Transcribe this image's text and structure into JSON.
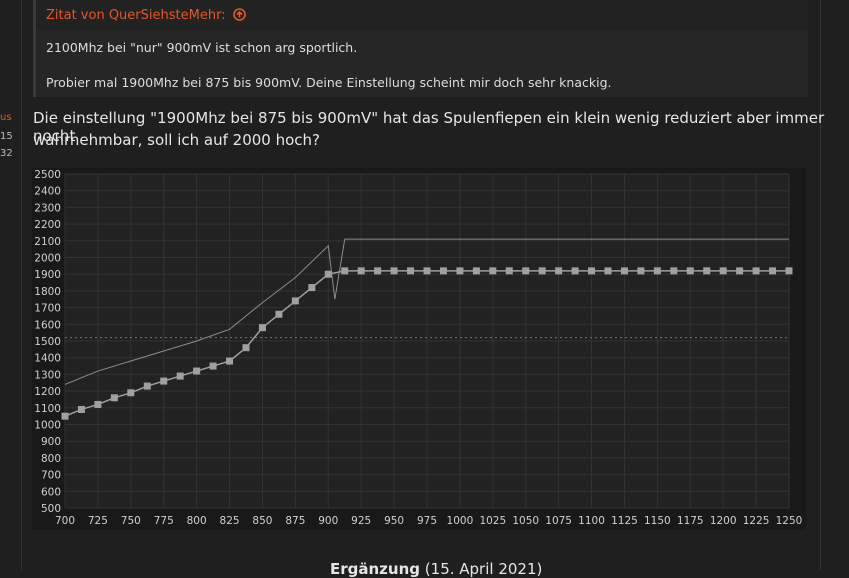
{
  "sidebar": [
    "us",
    "15",
    "32"
  ],
  "quote": {
    "author": "Zitat von QuerSiehsteMehr:",
    "lines": [
      "2100Mhz bei \"nur\" 900mV ist schon arg sportlich.",
      "Probier mal 1900Mhz bei 875 bis 900mV. Deine Einstellung scheint mir doch sehr knackig."
    ]
  },
  "post": {
    "lines": [
      "Die einstellung \"1900Mhz bei 875 bis 900mV\" hat das Spulenfiepen ein klein wenig reduziert aber immer nocht",
      "wahrnehmbar, soll ich auf 2000 hoch?"
    ]
  },
  "chart_data": {
    "type": "line",
    "xlim": [
      700,
      1250
    ],
    "ylim": [
      500,
      2500
    ],
    "xticks": [
      700,
      725,
      750,
      775,
      800,
      825,
      850,
      875,
      900,
      925,
      950,
      975,
      1000,
      1025,
      1050,
      1075,
      1100,
      1125,
      1150,
      1175,
      1200,
      1225,
      1250
    ],
    "yticks": [
      500,
      600,
      700,
      800,
      900,
      1000,
      1100,
      1200,
      1300,
      1400,
      1500,
      1600,
      1700,
      1800,
      1900,
      2000,
      2100,
      2200,
      2300,
      2400,
      2500
    ],
    "grid": true,
    "hline": 1520,
    "series": [
      {
        "color": "#8c8c8c",
        "marker": "none",
        "x": [
          700,
          725,
          750,
          775,
          800,
          825,
          850,
          875,
          900,
          905,
          912.5,
          1250
        ],
        "values": [
          1240,
          1320,
          1380,
          1440,
          1500,
          1570,
          1730,
          1880,
          2070,
          1750,
          2110,
          2110
        ]
      },
      {
        "color": "#a0a0a0",
        "marker": "square",
        "x": [
          700,
          712.5,
          725,
          737.5,
          750,
          762.5,
          775,
          787.5,
          800,
          812.5,
          825,
          837.5,
          850,
          862.5,
          875,
          887.5,
          900,
          912.5,
          925,
          937.5,
          950,
          962.5,
          975,
          987.5,
          1000,
          1012.5,
          1025,
          1037.5,
          1050,
          1062.5,
          1075,
          1087.5,
          1100,
          1112.5,
          1125,
          1137.5,
          1150,
          1162.5,
          1175,
          1187.5,
          1200,
          1212.5,
          1225,
          1237.5,
          1250
        ],
        "values": [
          1050,
          1090,
          1120,
          1160,
          1190,
          1230,
          1260,
          1290,
          1320,
          1350,
          1380,
          1460,
          1580,
          1660,
          1740,
          1820,
          1900,
          1920,
          1920,
          1920,
          1920,
          1920,
          1920,
          1920,
          1920,
          1920,
          1920,
          1920,
          1920,
          1920,
          1920,
          1920,
          1920,
          1920,
          1920,
          1920,
          1920,
          1920,
          1920,
          1920,
          1920,
          1920,
          1920,
          1920,
          1920
        ]
      }
    ]
  },
  "footer": {
    "title": "Ergänzung",
    "date": "(15. April 2021)"
  }
}
